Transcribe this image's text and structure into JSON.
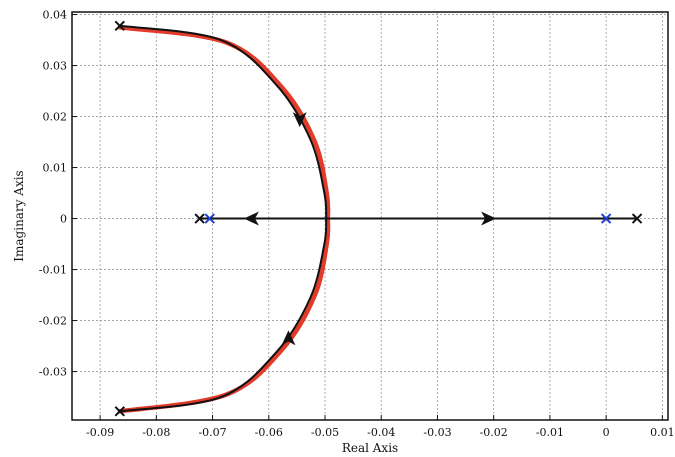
{
  "chart_data": {
    "type": "line",
    "title": "",
    "xlabel": "Real Axis",
    "ylabel": "Imaginary Axis",
    "xlim": [
      -0.095,
      0.011
    ],
    "ylim": [
      -0.0395,
      0.0405
    ],
    "x_ticks": [
      -0.09,
      -0.08,
      -0.07,
      -0.06,
      -0.05,
      -0.04,
      -0.03,
      -0.02,
      -0.01,
      0,
      0.01
    ],
    "x_tick_labels": [
      "-0.09",
      "-0.08",
      "-0.07",
      "-0.06",
      "-0.05",
      "-0.04",
      "-0.03",
      "-0.02",
      "-0.01",
      "0",
      "0.01"
    ],
    "y_ticks": [
      -0.03,
      -0.02,
      -0.01,
      0,
      0.01,
      0.02,
      0.03,
      0.04
    ],
    "y_tick_labels": [
      "-0.03",
      "-0.02",
      "-0.01",
      "0",
      "0.01",
      "0.02",
      "0.03",
      "0.04"
    ],
    "grid": true,
    "series": [
      {
        "color": "#e23b2a",
        "style": "thick",
        "points": [
          [
            -0.0865,
            0.0375
          ],
          [
            -0.0675,
            0.0345
          ],
          [
            -0.0575,
            0.0255
          ],
          [
            -0.0518,
            0.015
          ],
          [
            -0.0497,
            0.005
          ],
          [
            -0.0495,
            0
          ],
          [
            -0.0497,
            -0.005
          ],
          [
            -0.0518,
            -0.015
          ],
          [
            -0.0575,
            -0.0255
          ],
          [
            -0.0675,
            -0.0345
          ],
          [
            -0.0865,
            -0.0378
          ]
        ]
      },
      {
        "color": "#111111",
        "style": "thin",
        "points": [
          [
            -0.0865,
            0.0378
          ],
          [
            -0.0685,
            0.035
          ],
          [
            -0.0585,
            0.026
          ],
          [
            -0.0526,
            0.0155
          ],
          [
            -0.0502,
            0.0055
          ],
          [
            -0.0498,
            0
          ],
          [
            -0.0502,
            -0.0055
          ],
          [
            -0.0526,
            -0.0155
          ],
          [
            -0.0585,
            -0.026
          ],
          [
            -0.0685,
            -0.035
          ],
          [
            -0.0865,
            -0.0378
          ]
        ]
      },
      {
        "color": "#111111",
        "style": "thin",
        "points": [
          [
            -0.072,
            0
          ],
          [
            0.0055,
            0
          ]
        ]
      }
    ],
    "arrows": [
      {
        "x": -0.0545,
        "y": 0.0195,
        "dir": "down"
      },
      {
        "x": -0.0565,
        "y": -0.0235,
        "dir": "up"
      },
      {
        "x": -0.063,
        "y": 0,
        "dir": "left"
      },
      {
        "x": -0.021,
        "y": 0,
        "dir": "right"
      }
    ],
    "markers": [
      {
        "x": -0.0865,
        "y": 0.0378,
        "color": "#111111"
      },
      {
        "x": -0.0865,
        "y": -0.0378,
        "color": "#111111"
      },
      {
        "x": -0.0723,
        "y": 0,
        "color": "#111111"
      },
      {
        "x": 0.0055,
        "y": 0,
        "color": "#111111"
      },
      {
        "x": -0.0705,
        "y": 0,
        "color": "#1f3fcf"
      },
      {
        "x": 0.0,
        "y": 0,
        "color": "#1f3fcf"
      }
    ]
  }
}
